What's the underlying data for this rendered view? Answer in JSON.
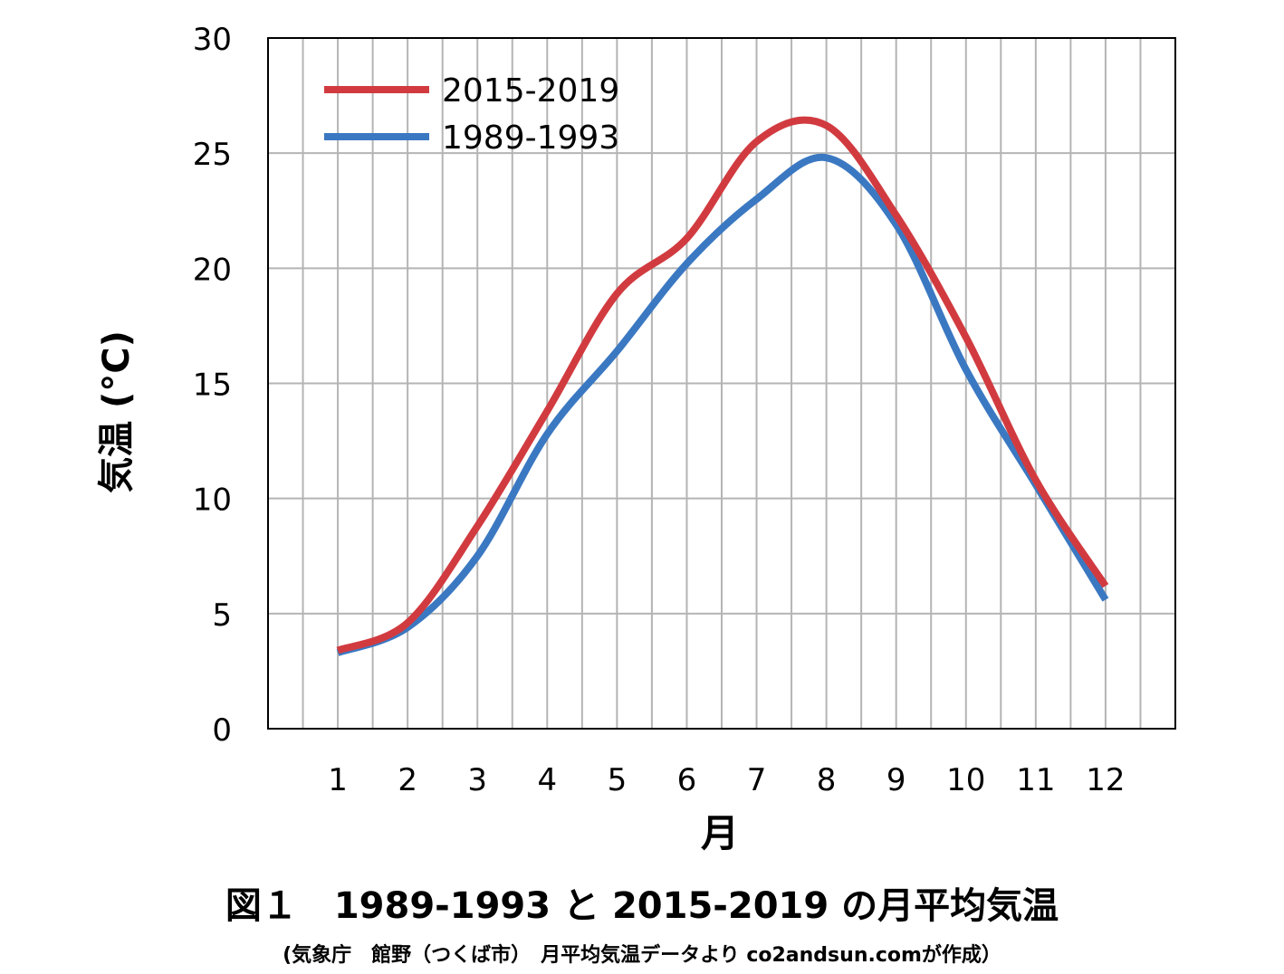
{
  "chart_data": {
    "type": "line",
    "xlabel": "月",
    "ylabel": "気温 (°C)",
    "x": [
      1,
      2,
      3,
      4,
      5,
      6,
      7,
      8,
      9,
      10,
      11,
      12
    ],
    "xticks": [
      "1",
      "2",
      "3",
      "4",
      "5",
      "6",
      "7",
      "8",
      "9",
      "10",
      "11",
      "12"
    ],
    "yticks": [
      "0",
      "5",
      "10",
      "15",
      "20",
      "25",
      "30"
    ],
    "ylim": [
      0,
      30
    ],
    "xlim": [
      0,
      13
    ],
    "grid": true,
    "legend_position": "top-left",
    "series": [
      {
        "name": "2015-2019",
        "color": "#d13b40",
        "values": [
          3.4,
          4.6,
          8.8,
          13.8,
          18.9,
          21.3,
          25.5,
          26.2,
          22.3,
          17.0,
          10.8,
          6.2
        ]
      },
      {
        "name": "1989-1993",
        "color": "#3b78c2",
        "values": [
          3.3,
          4.4,
          7.5,
          12.8,
          16.4,
          20.2,
          23.0,
          24.8,
          21.9,
          15.6,
          10.6,
          5.6
        ]
      }
    ]
  },
  "caption": {
    "title": "図１　1989-1993 と 2015-2019 の月平均気温",
    "source": "(気象庁　館野（つくば市）　月平均気温データより co2andsun.comが作成）"
  }
}
